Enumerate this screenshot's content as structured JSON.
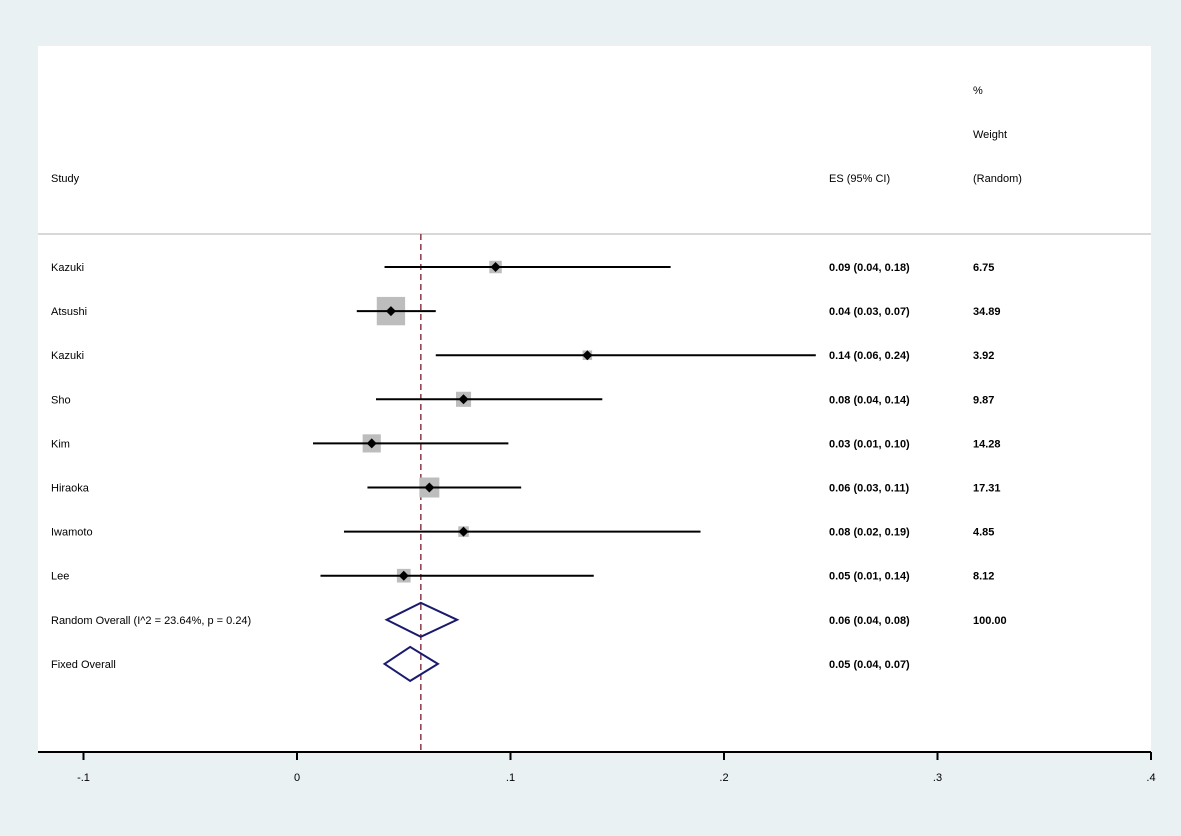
{
  "chart_data": {
    "type": "forest",
    "headers": {
      "study": "Study",
      "es": "ES (95% CI)",
      "weight_line1": "%",
      "weight_line2": "Weight",
      "weight_line3": "(Random)"
    },
    "studies": [
      {
        "name": "Kazuki",
        "es": 0.093,
        "lo": 0.041,
        "hi": 0.175,
        "es_text": "0.09 (0.04, 0.18)",
        "weight": 6.75,
        "weight_text": "6.75"
      },
      {
        "name": "Atsushi",
        "es": 0.044,
        "lo": 0.028,
        "hi": 0.065,
        "es_text": "0.04 (0.03, 0.07)",
        "weight": 34.89,
        "weight_text": "34.89"
      },
      {
        "name": "Kazuki",
        "es": 0.136,
        "lo": 0.065,
        "hi": 0.243,
        "es_text": "0.14 (0.06, 0.24)",
        "weight": 3.92,
        "weight_text": "3.92"
      },
      {
        "name": "Sho",
        "es": 0.078,
        "lo": 0.037,
        "hi": 0.143,
        "es_text": "0.08 (0.04, 0.14)",
        "weight": 9.87,
        "weight_text": "9.87"
      },
      {
        "name": "Kim",
        "es": 0.035,
        "lo": 0.0075,
        "hi": 0.099,
        "es_text": "0.03 (0.01, 0.10)",
        "weight": 14.28,
        "weight_text": "14.28"
      },
      {
        "name": "Hiraoka",
        "es": 0.062,
        "lo": 0.033,
        "hi": 0.105,
        "es_text": "0.06 (0.03, 0.11)",
        "weight": 17.31,
        "weight_text": "17.31"
      },
      {
        "name": "Iwamoto",
        "es": 0.078,
        "lo": 0.022,
        "hi": 0.189,
        "es_text": "0.08 (0.02, 0.19)",
        "weight": 4.85,
        "weight_text": "4.85"
      },
      {
        "name": "Lee",
        "es": 0.05,
        "lo": 0.011,
        "hi": 0.139,
        "es_text": "0.05 (0.01, 0.14)",
        "weight": 8.12,
        "weight_text": "8.12"
      }
    ],
    "overall": [
      {
        "name": "Random Overall  (I^2 = 23.64%, p = 0.24)",
        "es": 0.058,
        "lo": 0.042,
        "hi": 0.075,
        "es_text": "0.06 (0.04, 0.08)",
        "weight_text": "100.00"
      },
      {
        "name": "Fixed Overall",
        "es": 0.053,
        "lo": 0.041,
        "hi": 0.066,
        "es_text": "0.05 (0.04, 0.07)",
        "weight_text": ""
      }
    ],
    "reference_line": 0.058,
    "xlim": [
      -0.122,
      0.4
    ],
    "xticks": [
      -0.1,
      0,
      0.1,
      0.2,
      0.3,
      0.4
    ],
    "xtick_labels": [
      "-.1",
      "0",
      ".1",
      ".2",
      ".3",
      ".4"
    ],
    "colors": {
      "box": "#bdbdbd",
      "diamond": "#1a1a6e",
      "refline": "#8b3a4a",
      "background": "#e9f1f3"
    }
  }
}
